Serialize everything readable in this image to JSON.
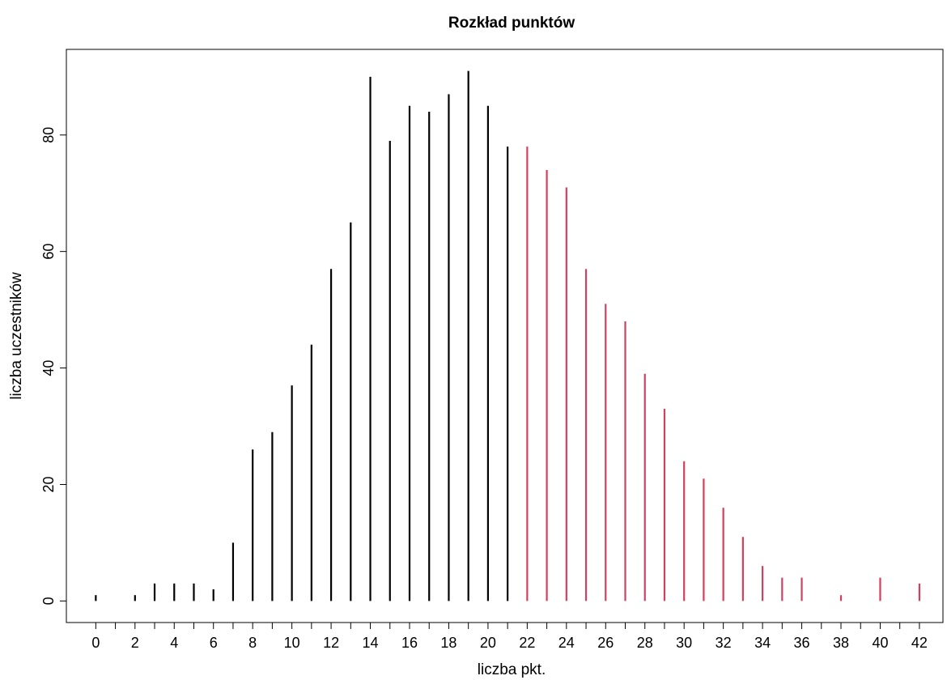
{
  "chart_data": {
    "type": "bar",
    "title": "Rozkład punktów",
    "xlabel": "liczba pkt.",
    "ylabel": "liczba uczestników",
    "xlim": [
      -1.5,
      43.2
    ],
    "ylim": [
      -3.7,
      94.7
    ],
    "grid": false,
    "x_ticks": [
      "0",
      "2",
      "4",
      "6",
      "8",
      "10",
      "12",
      "14",
      "16",
      "18",
      "20",
      "22",
      "24",
      "26",
      "28",
      "30",
      "32",
      "34",
      "36",
      "38",
      "40",
      "42"
    ],
    "y_ticks": [
      "0",
      "20",
      "40",
      "60",
      "80"
    ],
    "series": [
      {
        "color": "#000000",
        "x": [
          0,
          2,
          3,
          4,
          5,
          6,
          7,
          8,
          9,
          10,
          11,
          12,
          13,
          14,
          15,
          16,
          17,
          18,
          19,
          20,
          21
        ],
        "values": [
          1,
          1,
          3,
          3,
          3,
          2,
          10,
          26,
          29,
          37,
          44,
          57,
          65,
          90,
          79,
          85,
          84,
          87,
          91,
          85,
          78
        ]
      },
      {
        "color": "#d1405f",
        "x": [
          22,
          23,
          24,
          25,
          26,
          27,
          28,
          29,
          30,
          31,
          32,
          33,
          34,
          35,
          36,
          38,
          40,
          42
        ],
        "values": [
          78,
          74,
          71,
          57,
          51,
          48,
          39,
          33,
          24,
          21,
          16,
          11,
          6,
          4,
          4,
          1,
          4,
          3
        ]
      }
    ]
  }
}
